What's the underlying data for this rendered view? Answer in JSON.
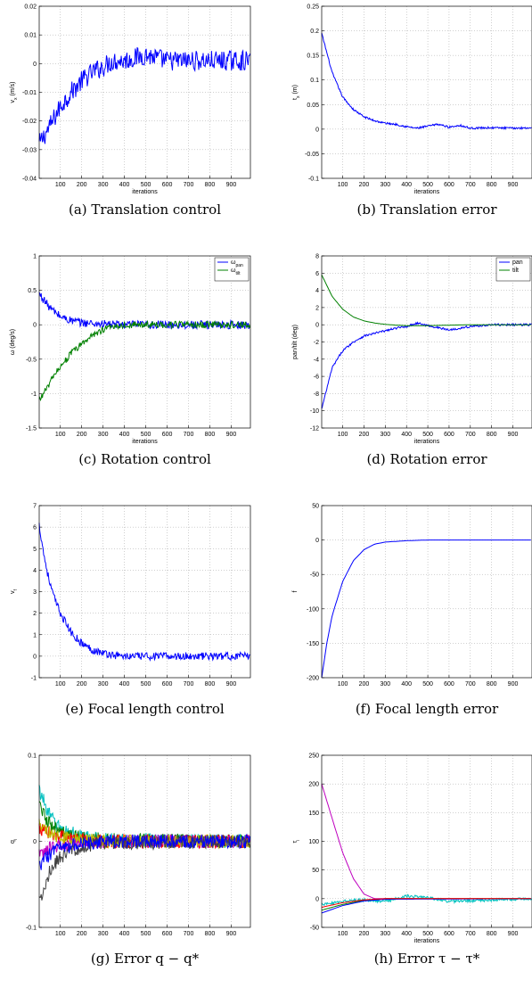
{
  "chart_data": [
    {
      "id": "a",
      "type": "line",
      "caption": "(a)  Translation control",
      "xlabel": "iterations",
      "ylabel": "v_x (m/s)",
      "xlim": [
        1,
        990
      ],
      "ylim": [
        -0.04,
        0.02
      ],
      "xticks": [
        "100",
        "200",
        "300",
        "400",
        "500",
        "600",
        "700",
        "800",
        "900"
      ],
      "yticks": [
        "-0.04",
        "-0.03",
        "-0.02",
        "-0.01",
        "0",
        "0.01",
        "0.02"
      ],
      "grid": true,
      "legend": null,
      "series": [
        {
          "color": "#0000ff",
          "noise": 0.0035,
          "x": [
            1,
            50,
            100,
            150,
            200,
            250,
            300,
            350,
            400,
            450,
            500,
            600,
            700,
            800,
            900,
            990
          ],
          "y": [
            -0.028,
            -0.022,
            -0.015,
            -0.01,
            -0.006,
            -0.003,
            -0.001,
            0.001,
            0.001,
            0.002,
            0.003,
            0.001,
            0.001,
            0.001,
            0.001,
            0.001
          ]
        }
      ]
    },
    {
      "id": "b",
      "type": "line",
      "caption": "(b)  Translation error",
      "xlabel": "iterations",
      "ylabel": "t_x (m)",
      "xlim": [
        1,
        990
      ],
      "ylim": [
        -0.1,
        0.25
      ],
      "xticks": [
        "100",
        "200",
        "300",
        "400",
        "500",
        "600",
        "700",
        "800",
        "900"
      ],
      "yticks": [
        "-0.1",
        "-0.05",
        "0",
        "0.05",
        "0.1",
        "0.15",
        "0.2",
        "0.25"
      ],
      "grid": true,
      "legend": null,
      "series": [
        {
          "color": "#0000ff",
          "noise": 0.002,
          "x": [
            1,
            50,
            100,
            150,
            200,
            250,
            300,
            350,
            400,
            450,
            500,
            550,
            600,
            650,
            700,
            800,
            900,
            990
          ],
          "y": [
            0.195,
            0.115,
            0.065,
            0.04,
            0.025,
            0.017,
            0.012,
            0.01,
            0.005,
            0.002,
            0.006,
            0.01,
            0.004,
            0.008,
            0.002,
            0.003,
            0.002,
            0.003
          ]
        }
      ]
    },
    {
      "id": "c",
      "type": "line",
      "caption": "(c)  Rotation control",
      "xlabel": "iterations",
      "ylabel": "ω (deg/s)",
      "xlim": [
        1,
        990
      ],
      "ylim": [
        -1.5,
        1
      ],
      "xticks": [
        "100",
        "200",
        "300",
        "400",
        "500",
        "600",
        "700",
        "800",
        "900"
      ],
      "yticks": [
        "-1.5",
        "-1",
        "-0.5",
        "0",
        "0.5",
        "1"
      ],
      "grid": true,
      "legend": "top-right",
      "series": [
        {
          "name": "ω_pan",
          "color": "#0000ff",
          "noise": 0.06,
          "x": [
            1,
            50,
            100,
            150,
            200,
            250,
            300,
            400,
            500,
            600,
            700,
            800,
            900,
            990
          ],
          "y": [
            0.45,
            0.25,
            0.12,
            0.06,
            0.03,
            0.02,
            0.01,
            0.0,
            0.0,
            0.0,
            0.0,
            0.0,
            0.0,
            0.0
          ]
        },
        {
          "name": "ω_tilt",
          "color": "#008000",
          "noise": 0.05,
          "x": [
            1,
            50,
            100,
            150,
            200,
            250,
            300,
            350,
            400,
            500,
            600,
            700,
            800,
            900,
            990
          ],
          "y": [
            -1.1,
            -0.85,
            -0.6,
            -0.42,
            -0.28,
            -0.15,
            -0.07,
            -0.02,
            0.0,
            0.0,
            0.0,
            0.0,
            0.0,
            0.0,
            0.0
          ]
        }
      ]
    },
    {
      "id": "d",
      "type": "line",
      "caption": "(d)  Rotation error",
      "xlabel": "iterations",
      "ylabel": "pan/tilt (deg)",
      "xlim": [
        1,
        990
      ],
      "ylim": [
        -12,
        8
      ],
      "xticks": [
        "100",
        "200",
        "300",
        "400",
        "500",
        "600",
        "700",
        "800",
        "900"
      ],
      "yticks": [
        "-12",
        "-10",
        "-8",
        "-6",
        "-4",
        "-2",
        "0",
        "2",
        "4",
        "6",
        "8"
      ],
      "grid": true,
      "legend": "top-right",
      "series": [
        {
          "name": "pan",
          "color": "#0000ff",
          "noise": 0.12,
          "x": [
            1,
            50,
            100,
            150,
            200,
            250,
            300,
            350,
            400,
            450,
            500,
            600,
            700,
            800,
            900,
            990
          ],
          "y": [
            -9.8,
            -5.0,
            -3.0,
            -2.0,
            -1.3,
            -1.0,
            -0.7,
            -0.4,
            -0.2,
            0.2,
            -0.1,
            -0.6,
            -0.2,
            0.0,
            0.0,
            0.0
          ]
        },
        {
          "name": "tilt",
          "color": "#008000",
          "noise": 0.0,
          "x": [
            1,
            50,
            100,
            150,
            200,
            250,
            300,
            350,
            400,
            500,
            600,
            700,
            800,
            900,
            990
          ],
          "y": [
            5.8,
            3.3,
            1.8,
            0.9,
            0.45,
            0.2,
            0.05,
            -0.05,
            -0.1,
            -0.1,
            -0.05,
            0.0,
            0.0,
            0.0,
            0.0
          ]
        }
      ]
    },
    {
      "id": "e",
      "type": "line",
      "caption": "(e)  Focal length control",
      "xlabel": "",
      "ylabel": "v_f",
      "xlim": [
        1,
        990
      ],
      "ylim": [
        -1,
        7
      ],
      "xticks": [
        "100",
        "200",
        "300",
        "400",
        "500",
        "600",
        "700",
        "800",
        "900"
      ],
      "yticks": [
        "-1",
        "0",
        "1",
        "2",
        "3",
        "4",
        "5",
        "6",
        "7"
      ],
      "grid": true,
      "legend": null,
      "series": [
        {
          "color": "#0000ff",
          "noise": 0.18,
          "x": [
            1,
            25,
            50,
            75,
            100,
            150,
            200,
            250,
            300,
            350,
            400,
            500,
            600,
            700,
            800,
            900,
            990
          ],
          "y": [
            6.1,
            4.6,
            3.4,
            2.6,
            2.0,
            1.1,
            0.6,
            0.3,
            0.15,
            0.05,
            0.0,
            0.0,
            0.0,
            0.0,
            0.0,
            0.0,
            0.0
          ]
        }
      ]
    },
    {
      "id": "f",
      "type": "line",
      "caption": "(f)  Focal length error",
      "xlabel": "",
      "ylabel": "f",
      "xlim": [
        1,
        990
      ],
      "ylim": [
        -200,
        50
      ],
      "xticks": [
        "100",
        "200",
        "300",
        "400",
        "500",
        "600",
        "700",
        "800",
        "900"
      ],
      "yticks": [
        "-200",
        "-150",
        "-100",
        "-50",
        "0",
        "50"
      ],
      "grid": true,
      "legend": null,
      "series": [
        {
          "color": "#0000ff",
          "noise": 0.0,
          "x": [
            1,
            25,
            50,
            100,
            150,
            200,
            250,
            300,
            350,
            400,
            500,
            600,
            700,
            800,
            900,
            990
          ],
          "y": [
            -200,
            -150,
            -110,
            -60,
            -30,
            -14,
            -6,
            -3,
            -2,
            -1,
            0,
            0,
            0,
            0,
            0,
            0
          ]
        }
      ]
    },
    {
      "id": "g",
      "type": "line",
      "caption": "(g)  Error  q − q*",
      "xlabel": "",
      "ylabel": "q_i",
      "xlim": [
        1,
        990
      ],
      "ylim": [
        -0.1,
        0.1
      ],
      "xticks": [
        "100",
        "200",
        "300",
        "400",
        "500",
        "600",
        "700",
        "800",
        "900"
      ],
      "yticks": [
        "-0.1",
        "0",
        "0.1"
      ],
      "grid": true,
      "legend": null,
      "series": [
        {
          "color": "#00bfbf",
          "noise": 0.008,
          "x": [
            1,
            50,
            100,
            200,
            300,
            990
          ],
          "y": [
            0.06,
            0.03,
            0.015,
            0.005,
            0.002,
            0.0
          ]
        },
        {
          "color": "#008000",
          "noise": 0.008,
          "x": [
            1,
            50,
            100,
            200,
            300,
            990
          ],
          "y": [
            0.04,
            0.02,
            0.01,
            0.004,
            0.002,
            0.0
          ]
        },
        {
          "color": "#ff0000",
          "noise": 0.008,
          "x": [
            1,
            50,
            100,
            200,
            300,
            990
          ],
          "y": [
            0.015,
            0.008,
            0.005,
            0.002,
            0.0,
            0.0
          ]
        },
        {
          "color": "#bf00bf",
          "noise": 0.008,
          "x": [
            1,
            50,
            100,
            200,
            300,
            990
          ],
          "y": [
            -0.015,
            -0.008,
            -0.004,
            -0.002,
            0.0,
            0.0
          ]
        },
        {
          "color": "#bfbf00",
          "noise": 0.008,
          "x": [
            1,
            50,
            100,
            200,
            300,
            990
          ],
          "y": [
            0.02,
            0.01,
            0.005,
            0.002,
            0.0,
            0.0
          ]
        },
        {
          "color": "#404040",
          "noise": 0.008,
          "x": [
            1,
            50,
            100,
            200,
            300,
            990
          ],
          "y": [
            -0.07,
            -0.035,
            -0.018,
            -0.006,
            -0.002,
            0.0
          ]
        },
        {
          "color": "#0000ff",
          "noise": 0.008,
          "x": [
            1,
            50,
            100,
            200,
            300,
            990
          ],
          "y": [
            -0.03,
            -0.015,
            -0.008,
            -0.003,
            0.0,
            0.0
          ]
        }
      ]
    },
    {
      "id": "h",
      "type": "line",
      "caption": "(h)  Error  τ − τ*",
      "xlabel": "iterations",
      "ylabel": "τ_i",
      "xlim": [
        1,
        990
      ],
      "ylim": [
        -50,
        250
      ],
      "xticks": [
        "100",
        "200",
        "300",
        "400",
        "500",
        "600",
        "700",
        "800",
        "900"
      ],
      "yticks": [
        "-50",
        "0",
        "50",
        "100",
        "150",
        "200",
        "250"
      ],
      "grid": true,
      "legend": null,
      "series": [
        {
          "color": "#bf00bf",
          "noise": 0.0,
          "x": [
            1,
            50,
            100,
            150,
            200,
            250,
            300,
            990
          ],
          "y": [
            200,
            140,
            80,
            35,
            8,
            0,
            0,
            0
          ]
        },
        {
          "color": "#00bfbf",
          "noise": 2.5,
          "x": [
            1,
            100,
            200,
            300,
            400,
            500,
            600,
            990
          ],
          "y": [
            -10,
            -5,
            -2,
            -5,
            5,
            2,
            -5,
            0
          ]
        },
        {
          "color": "#008000",
          "noise": 0.0,
          "x": [
            1,
            100,
            200,
            300,
            990
          ],
          "y": [
            -20,
            -10,
            -3,
            0,
            0
          ]
        },
        {
          "color": "#0000ff",
          "noise": 0.0,
          "x": [
            1,
            100,
            200,
            300,
            990
          ],
          "y": [
            -25,
            -12,
            -4,
            -1,
            0
          ]
        },
        {
          "color": "#ff0000",
          "noise": 0.0,
          "x": [
            1,
            100,
            200,
            300,
            990
          ],
          "y": [
            -15,
            -7,
            -2,
            0,
            0
          ]
        }
      ]
    }
  ]
}
